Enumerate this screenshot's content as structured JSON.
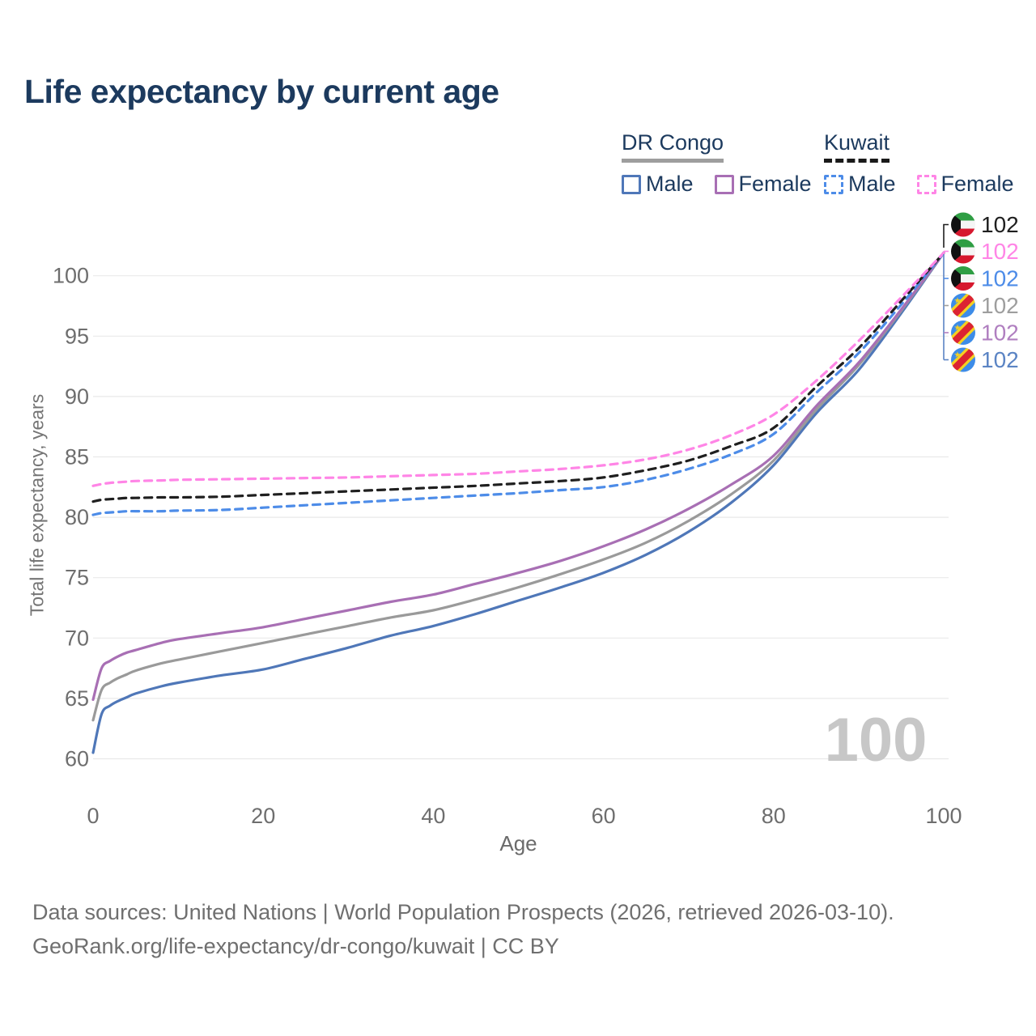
{
  "title": "Life expectancy by current age",
  "legend": {
    "groups": [
      {
        "label": "DR Congo",
        "line_style": "solid",
        "items": [
          {
            "label": "Male",
            "series": "DR Congo — Male"
          },
          {
            "label": "Female",
            "series": "DR Congo — Female"
          }
        ]
      },
      {
        "label": "Kuwait",
        "line_style": "dashed",
        "items": [
          {
            "label": "Male",
            "series": "Kuwait — Male"
          },
          {
            "label": "Female",
            "series": "Kuwait — Female"
          }
        ]
      }
    ]
  },
  "chart_data": {
    "type": "line",
    "title": "Life expectancy by current age",
    "xlabel": "Age",
    "ylabel": "Total life expectancy, years",
    "xticks": [
      0,
      20,
      40,
      60,
      80,
      100
    ],
    "yticks": [
      60,
      65,
      70,
      75,
      80,
      85,
      90,
      95,
      100
    ],
    "xlim": [
      0,
      100
    ],
    "ylim": [
      58.5,
      103
    ],
    "grid": "horizontal",
    "legend_position": "top-right",
    "watermark": "100",
    "ages": [
      0,
      1,
      2,
      3,
      4,
      5,
      8,
      10,
      15,
      20,
      25,
      30,
      35,
      40,
      45,
      50,
      55,
      60,
      65,
      70,
      75,
      80,
      85,
      90,
      95,
      100
    ],
    "series": [
      {
        "name": "DR Congo — Male",
        "country": "DR Congo",
        "sex": "Male",
        "color": "#4f77b8",
        "dash": false,
        "values": [
          60.5,
          63.7,
          64.4,
          64.8,
          65.1,
          65.4,
          66.0,
          66.3,
          66.9,
          67.4,
          68.3,
          69.2,
          70.2,
          71.0,
          72.0,
          73.1,
          74.2,
          75.4,
          76.9,
          78.8,
          81.2,
          84.3,
          88.6,
          92.2,
          96.9,
          101.9
        ]
      },
      {
        "name": "DR Congo — Both sexes",
        "country": "DR Congo",
        "sex": "Both",
        "color": "#9a9a9a",
        "dash": false,
        "values": [
          63.2,
          65.7,
          66.3,
          66.7,
          67.0,
          67.3,
          67.9,
          68.2,
          68.9,
          69.6,
          70.3,
          71.0,
          71.7,
          72.3,
          73.2,
          74.2,
          75.3,
          76.5,
          77.9,
          79.7,
          81.9,
          84.7,
          88.9,
          92.6,
          97.1,
          101.9
        ]
      },
      {
        "name": "DR Congo — Female",
        "country": "DR Congo",
        "sex": "Female",
        "color": "#a86fb4",
        "dash": false,
        "values": [
          64.9,
          67.5,
          68.1,
          68.5,
          68.8,
          69.0,
          69.6,
          69.9,
          70.4,
          70.9,
          71.6,
          72.3,
          73.0,
          73.6,
          74.5,
          75.4,
          76.4,
          77.6,
          79.0,
          80.7,
          82.7,
          85.1,
          89.2,
          92.8,
          97.2,
          101.9
        ]
      },
      {
        "name": "Kuwait — Male",
        "country": "Kuwait",
        "sex": "Male",
        "color": "#4d8ce8",
        "dash": true,
        "values": [
          80.2,
          80.35,
          80.4,
          80.45,
          80.5,
          80.5,
          80.5,
          80.55,
          80.6,
          80.8,
          81.0,
          81.2,
          81.4,
          81.6,
          81.8,
          82.0,
          82.25,
          82.5,
          83.1,
          84.0,
          85.2,
          86.9,
          90.3,
          93.6,
          97.6,
          101.9
        ]
      },
      {
        "name": "Kuwait — Both sexes",
        "country": "Kuwait",
        "sex": "Both",
        "color": "#1f1f1f",
        "dash": true,
        "values": [
          81.3,
          81.45,
          81.5,
          81.55,
          81.6,
          81.6,
          81.65,
          81.65,
          81.7,
          81.85,
          82.0,
          82.15,
          82.3,
          82.45,
          82.6,
          82.8,
          83.0,
          83.3,
          83.9,
          84.7,
          85.9,
          87.4,
          90.8,
          94.0,
          97.9,
          101.9
        ]
      },
      {
        "name": "Kuwait — Female",
        "country": "Kuwait",
        "sex": "Female",
        "color": "#ff85e6",
        "dash": true,
        "values": [
          82.6,
          82.75,
          82.85,
          82.9,
          82.95,
          83.0,
          83.05,
          83.1,
          83.15,
          83.2,
          83.25,
          83.3,
          83.4,
          83.5,
          83.6,
          83.8,
          84.0,
          84.3,
          84.8,
          85.6,
          86.8,
          88.5,
          91.3,
          94.6,
          98.2,
          101.9
        ]
      }
    ],
    "end_labels": [
      {
        "flag": "kuwait",
        "series": "Kuwait — Both sexes",
        "value": "102",
        "color": "#1f1f1f"
      },
      {
        "flag": "kuwait",
        "series": "Kuwait — Female",
        "value": "102",
        "color": "#ff85e6"
      },
      {
        "flag": "kuwait",
        "series": "Kuwait — Male",
        "value": "102",
        "color": "#4d8ce8"
      },
      {
        "flag": "dr-congo",
        "series": "DR Congo — Both sexes",
        "value": "102",
        "color": "#9e9e9e"
      },
      {
        "flag": "dr-congo",
        "series": "DR Congo — Female",
        "value": "102",
        "color": "#b07fc0"
      },
      {
        "flag": "dr-congo",
        "series": "DR Congo — Male",
        "value": "102",
        "color": "#5b84c4"
      }
    ]
  },
  "colors": {
    "title_text": "#1c3a5e",
    "axis_text": "#6e6e6e",
    "gridline": "#e9e9e9",
    "watermark": "#c7c7c7",
    "footer_text": "#6f6f6f",
    "kuwait_flag": {
      "green": "#2f9e44",
      "white": "#f5f5f5",
      "red": "#d6182e",
      "black": "#111111"
    },
    "dr_congo_flag": {
      "blue": "#3d8ce8",
      "yellow": "#f5d021",
      "red": "#dc2332"
    }
  },
  "footer": {
    "line1": "Data sources: United Nations | World Population Prospects (2026, retrieved 2026-03-10).",
    "line2": "GeoRank.org/life-expectancy/dr-congo/kuwait | CC BY"
  }
}
